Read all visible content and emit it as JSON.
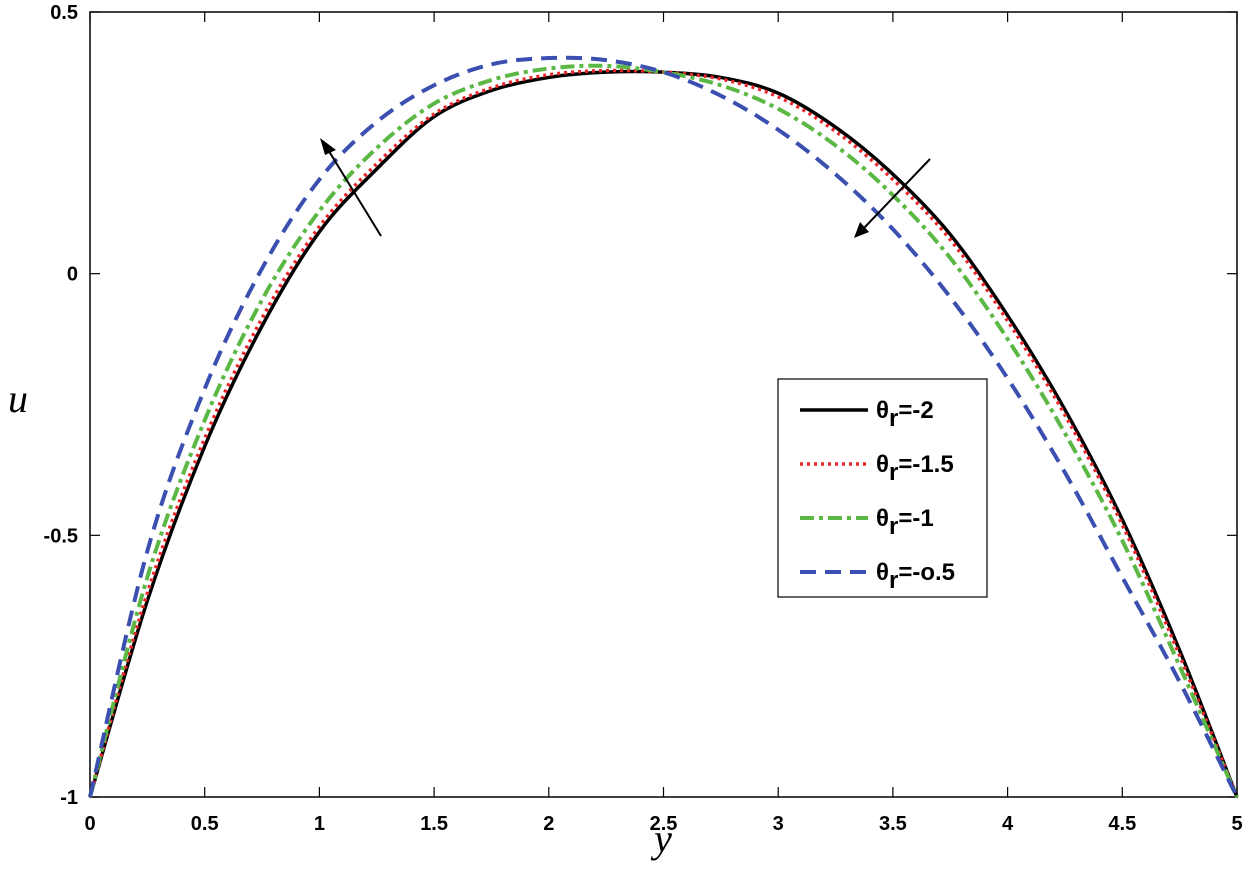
{
  "chart_data": {
    "type": "line",
    "xlabel": "y",
    "ylabel": "u",
    "xlim": [
      0,
      5
    ],
    "ylim": [
      -1,
      0.5
    ],
    "xticks": [
      "0",
      "0.5",
      "1",
      "1.5",
      "2",
      "2.5",
      "3",
      "3.5",
      "4",
      "4.5",
      "5"
    ],
    "yticks": [
      "-1",
      "-0.5",
      "0",
      "0.5"
    ],
    "grid": false,
    "legend_position": "right",
    "series": [
      {
        "name": "θr=-2",
        "legend_main": "θ",
        "legend_sub": "r",
        "legend_rest": "=-2",
        "color": "#000000",
        "dash": "solid",
        "x": [
          0,
          0.25,
          0.5,
          0.75,
          1,
          1.25,
          1.5,
          1.75,
          2,
          2.25,
          2.5,
          2.75,
          3,
          3.25,
          3.5,
          3.75,
          4,
          4.25,
          4.5,
          4.75,
          5
        ],
        "y": [
          -1,
          -0.625,
          -0.33,
          -0.1,
          0.08,
          0.2,
          0.3,
          0.35,
          0.375,
          0.385,
          0.385,
          0.375,
          0.345,
          0.28,
          0.19,
          0.075,
          -0.08,
          -0.26,
          -0.47,
          -0.72,
          -1
        ]
      },
      {
        "name": "θr=-1.5",
        "legend_main": "θ",
        "legend_sub": "r",
        "legend_rest": "=-1.5",
        "color": "#e8262a",
        "dash": "dotted",
        "x": [
          0,
          0.25,
          0.5,
          0.75,
          1,
          1.25,
          1.5,
          1.75,
          2,
          2.25,
          2.5,
          2.75,
          3,
          3.25,
          3.5,
          3.75,
          4,
          4.25,
          4.5,
          4.75,
          5
        ],
        "y": [
          -1,
          -0.61,
          -0.315,
          -0.085,
          0.09,
          0.21,
          0.305,
          0.355,
          0.38,
          0.388,
          0.385,
          0.372,
          0.338,
          0.272,
          0.18,
          0.065,
          -0.09,
          -0.27,
          -0.48,
          -0.73,
          -1
        ]
      },
      {
        "name": "θr=-1",
        "legend_main": "θ",
        "legend_sub": "r",
        "legend_rest": "=-1",
        "color": "#5cb845",
        "dash": "dashdot",
        "x": [
          0,
          0.25,
          0.5,
          0.75,
          1,
          1.25,
          1.5,
          1.75,
          2,
          2.25,
          2.5,
          2.75,
          3,
          3.25,
          3.5,
          3.75,
          4,
          4.25,
          4.5,
          4.75,
          5
        ],
        "y": [
          -1,
          -0.58,
          -0.28,
          -0.05,
          0.12,
          0.24,
          0.325,
          0.37,
          0.392,
          0.397,
          0.385,
          0.36,
          0.315,
          0.245,
          0.15,
          0.03,
          -0.125,
          -0.305,
          -0.51,
          -0.75,
          -1
        ]
      },
      {
        "name": "θr=-o.5",
        "legend_main": "θ",
        "legend_sub": "r",
        "legend_rest": "=-o.5",
        "color": "#3a4fb0",
        "dash": "dashed",
        "x": [
          0,
          0.25,
          0.5,
          0.75,
          1,
          1.25,
          1.5,
          1.75,
          2,
          2.25,
          2.5,
          2.75,
          3,
          3.25,
          3.5,
          3.75,
          4,
          4.25,
          4.5,
          4.75,
          5
        ],
        "y": [
          -1,
          -0.53,
          -0.22,
          0.01,
          0.18,
          0.29,
          0.36,
          0.4,
          0.412,
          0.408,
          0.385,
          0.34,
          0.275,
          0.19,
          0.085,
          -0.045,
          -0.2,
          -0.38,
          -0.58,
          -0.78,
          -1
        ]
      }
    ]
  }
}
